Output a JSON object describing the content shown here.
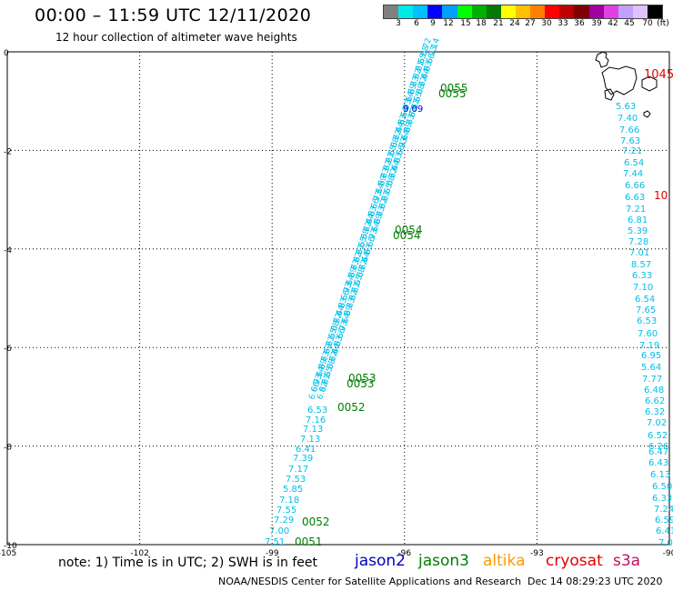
{
  "header": {
    "title": "00:00 – 11:59 UTC 12/11/2020",
    "subtitle": "12 hour collection of altimeter wave heights"
  },
  "legend": {
    "colors": [
      "#808080",
      "#00e8e8",
      "#00c0ff",
      "#0000ff",
      "#00a0ff",
      "#00ff00",
      "#00b000",
      "#007a00",
      "#ffff00",
      "#ffc000",
      "#ff8000",
      "#ff0000",
      "#c00000",
      "#800000",
      "#a000a0",
      "#e040e0",
      "#c0a0ff",
      "#e0c0ff",
      "#000000"
    ],
    "labels": [
      "3",
      "6",
      "9",
      "12",
      "15",
      "18",
      "21",
      "24",
      "27",
      "30",
      "33",
      "36",
      "39",
      "42",
      "45",
      "70",
      "(ft)"
    ]
  },
  "axes": {
    "x_ticks": [
      "-105",
      "-102",
      "-99",
      "-96",
      "-93",
      "-90"
    ],
    "y_ticks": [
      "0",
      "-2",
      "-4",
      "-6",
      "-8",
      "-10"
    ],
    "lon_range": [
      -105,
      -90
    ],
    "lat_range": [
      -10,
      0
    ]
  },
  "tracks": {
    "jason3_left": {
      "color": "#00bfe8",
      "values": [
        "7.51",
        "7.00",
        "7.29",
        "7.55",
        "7.18",
        "5.85",
        "7.53",
        "7.17",
        "7.39",
        "6.41",
        "7.13",
        "7.13",
        "7.16",
        "6.53"
      ]
    },
    "jason3_dense_labels": [
      "6.66",
      "6.93",
      "7.14",
      "6.39",
      "6.73",
      "6.82",
      "6.21",
      "6.55",
      "6.08",
      "6.72",
      "6.44",
      "6.83"
    ],
    "jason2_sample": "9.09",
    "right_track": {
      "color": "#00bfe8",
      "values": [
        "5.63",
        "7.40",
        "7.66",
        "7.63",
        "7.21",
        "6.54",
        "7.44",
        "6.66",
        "6.63",
        "7.21",
        "6.81",
        "5.39",
        "7.28",
        "7.01",
        "8.57",
        "6.33",
        "7.10",
        "6.54",
        "7.65",
        "6.53",
        "7.60",
        "7.19",
        "6.95",
        "5.64",
        "7.77",
        "6.48",
        "6.62",
        "6.32",
        "7.02",
        "6.52",
        "6.26",
        "6.47",
        "6.43",
        "6.13",
        "6.50",
        "6.33",
        "7.24",
        "6.59",
        "6.41",
        "7.09"
      ]
    },
    "time_labels": [
      "0055",
      "0055",
      "0054",
      "0054",
      "0053",
      "0053",
      "0052",
      "0052",
      "0051"
    ],
    "red_labels": [
      "1045",
      "10"
    ]
  },
  "footer": {
    "note": "note:  1) Time is in UTC;  2) SWH is in feet",
    "satellites": [
      {
        "name": "jason2",
        "color": "#0000c0"
      },
      {
        "name": "jason3",
        "color": "#008000"
      },
      {
        "name": "altika",
        "color": "#ff9900"
      },
      {
        "name": "cryosat",
        "color": "#e00000"
      },
      {
        "name": "s3a",
        "color": "#c01060"
      }
    ],
    "credit": "NOAA/NESDIS Center for Satellite Applications and Research",
    "timestamp": "Dec 14 08:29:23 UTC 2020"
  }
}
